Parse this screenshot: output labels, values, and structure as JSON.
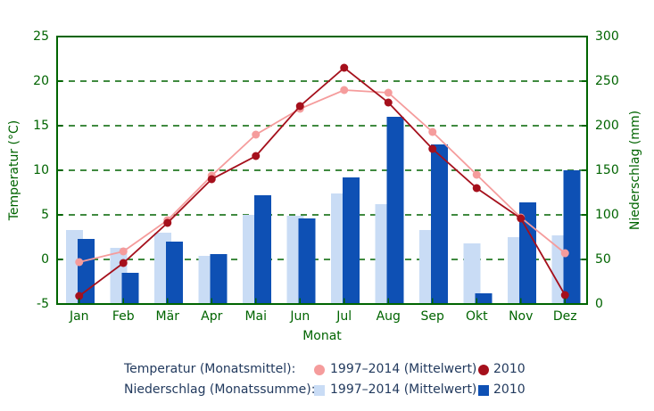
{
  "axes": {
    "y_left": {
      "title": "Temperatur (°C)",
      "min": -5,
      "max": 25,
      "ticks": [
        25,
        20,
        15,
        10,
        5,
        0,
        -5
      ]
    },
    "y_right": {
      "title": "Niederschlag (mm)",
      "min": 0,
      "max": 300,
      "ticks": [
        300,
        250,
        200,
        150,
        100,
        50,
        0
      ]
    },
    "x": {
      "title": "Monat"
    }
  },
  "chart_data": {
    "type": "combo-bar-line",
    "categories": [
      "Jan",
      "Feb",
      "Mär",
      "Apr",
      "Mai",
      "Jun",
      "Jul",
      "Aug",
      "Sep",
      "Okt",
      "Nov",
      "Dez"
    ],
    "series": [
      {
        "name": "Niederschlag 1997–2014 (Mittelwert)",
        "type": "bar",
        "axis": "right",
        "color": "#c9dcf5",
        "values": [
          83,
          63,
          80,
          54,
          100,
          99,
          124,
          112,
          83,
          68,
          75,
          77
        ]
      },
      {
        "name": "Niederschlag 2010",
        "type": "bar",
        "axis": "right",
        "color": "#0e50b4",
        "values": [
          73,
          35,
          70,
          56,
          122,
          96,
          142,
          210,
          179,
          12,
          114,
          150
        ]
      },
      {
        "name": "Temperatur 1997–2014 (Mittelwert)",
        "type": "line",
        "axis": "left",
        "color": "#f59c9c",
        "values": [
          -0.3,
          0.9,
          4.4,
          9.4,
          14.0,
          16.9,
          19.0,
          18.7,
          14.3,
          9.5,
          4.7,
          0.7
        ]
      },
      {
        "name": "Temperatur 2010",
        "type": "line",
        "axis": "left",
        "color": "#a5101c",
        "values": [
          -4.1,
          -0.4,
          4.1,
          9.0,
          11.6,
          17.2,
          21.5,
          17.6,
          12.4,
          8.0,
          4.6,
          -4.0
        ]
      }
    ],
    "title": "",
    "xlabel": "Monat",
    "ylabel_left": "Temperatur (°C)",
    "ylabel_right": "Niederschlag (mm)",
    "ylim_left": [
      -5,
      25
    ],
    "ylim_right": [
      0,
      300
    ],
    "grid": "horizontal-dashed"
  },
  "legend": {
    "row1_label": "Temperatur (Monatsmittel):",
    "row1_item1": "1997–2014 (Mittelwert)",
    "row1_item2": "2010",
    "row2_label": "Niederschlag (Monatssumme):",
    "row2_item1": "1997–2014 (Mittelwert)",
    "row2_item2": "2010"
  },
  "colors": {
    "axis_green": "#006400",
    "legend_text": "#223a5e",
    "temp_mean": "#f59c9c",
    "temp_2010": "#a5101c",
    "precip_mean": "#c9dcf5",
    "precip_2010": "#0e50b4"
  }
}
